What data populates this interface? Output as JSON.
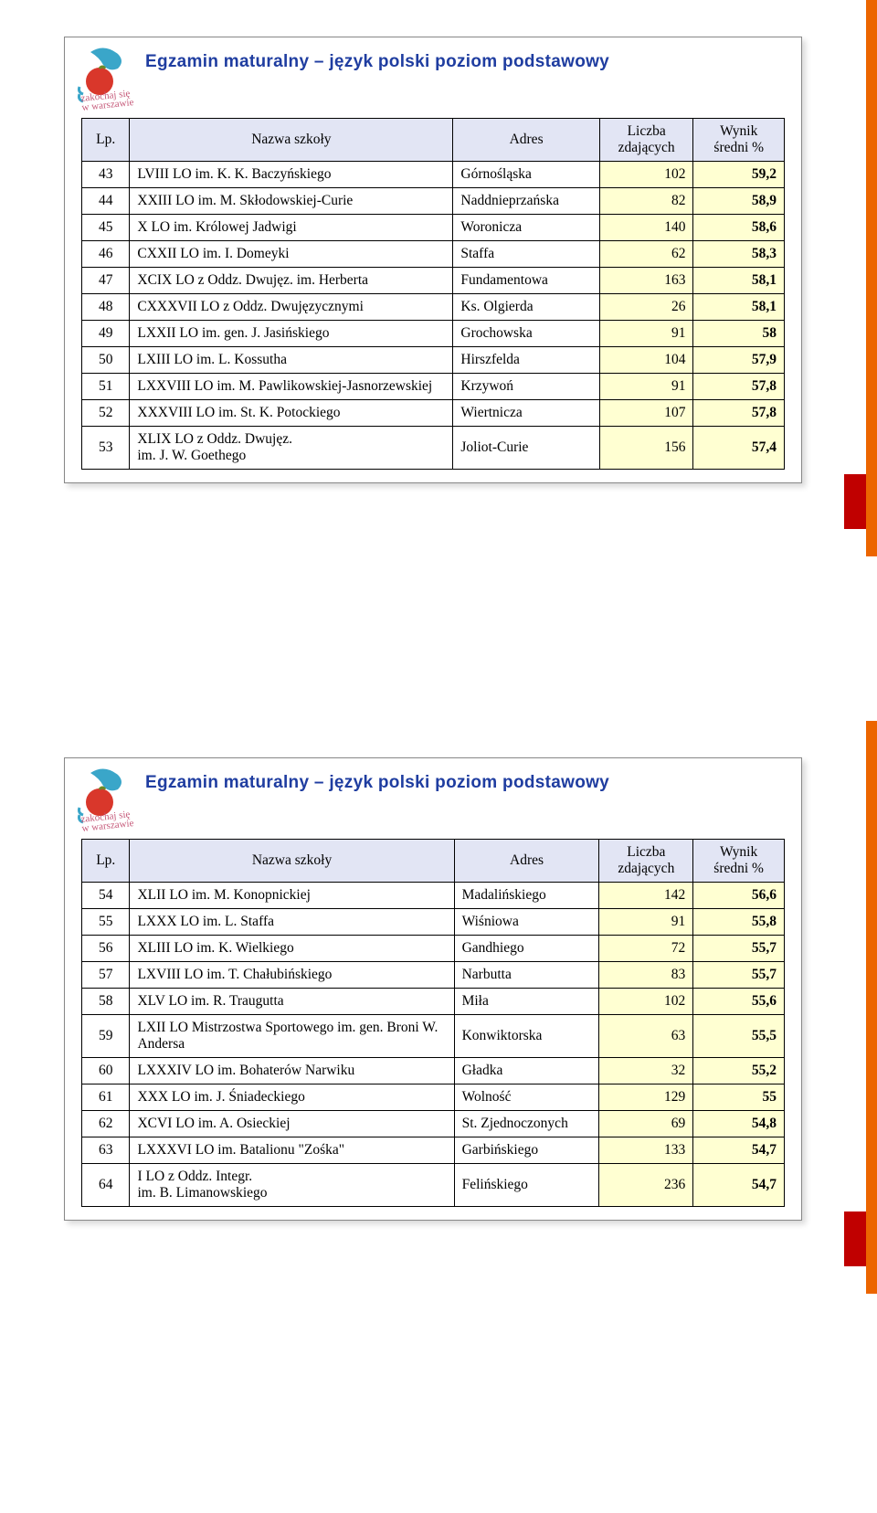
{
  "title": "Egzamin maturalny – język polski poziom  podstawowy",
  "slogan_line1": "zakochaj się",
  "slogan_line2": "w warszawie",
  "headers": {
    "lp": "Lp.",
    "name": "Nazwa szkoły",
    "addr": "Adres",
    "cnt_l1": "Liczba",
    "cnt_l2": "zdających",
    "res_l1": "Wynik",
    "res_l2": "średni %"
  },
  "table1": [
    {
      "lp": "43",
      "name": "LVIII LO im. K. K. Baczyńskiego",
      "addr": "Górnośląska",
      "cnt": "102",
      "res": "59,2"
    },
    {
      "lp": "44",
      "name": "XXIII LO im. M. Skłodowskiej-Curie",
      "addr": "Naddnieprzańska",
      "cnt": "82",
      "res": "58,9"
    },
    {
      "lp": "45",
      "name": "X LO im. Królowej Jadwigi",
      "addr": "Woronicza",
      "cnt": "140",
      "res": "58,6"
    },
    {
      "lp": "46",
      "name": "CXXII LO im. I. Domeyki",
      "addr": "Staffa",
      "cnt": "62",
      "res": "58,3"
    },
    {
      "lp": "47",
      "name": "XCIX LO z Oddz. Dwujęz. im. Herberta",
      "addr": "Fundamentowa",
      "cnt": "163",
      "res": "58,1"
    },
    {
      "lp": "48",
      "name": "CXXXVII LO z Oddz. Dwujęzycznymi",
      "addr": "Ks. Olgierda",
      "cnt": "26",
      "res": "58,1"
    },
    {
      "lp": "49",
      "name": "LXXII LO im. gen. J. Jasińskiego",
      "addr": "Grochowska",
      "cnt": "91",
      "res": "58"
    },
    {
      "lp": "50",
      "name": "LXIII LO  im. L. Kossutha",
      "addr": "Hirszfelda",
      "cnt": "104",
      "res": "57,9"
    },
    {
      "lp": "51",
      "name": "LXXVIII LO im. M. Pawlikowskiej-Jasnorzewskiej",
      "addr": "Krzywoń",
      "cnt": "91",
      "res": "57,8"
    },
    {
      "lp": "52",
      "name": "XXXVIII LO im. St. K. Potockiego",
      "addr": "Wiertnicza",
      "cnt": "107",
      "res": "57,8"
    },
    {
      "lp": "53",
      "name": "XLIX LO z Oddz. Dwujęz.\nim. J. W. Goethego",
      "addr": "Joliot-Curie",
      "cnt": "156",
      "res": "57,4"
    }
  ],
  "table2": [
    {
      "lp": "54",
      "name": "XLII LO im. M. Konopnickiej",
      "addr": "Madalińskiego",
      "cnt": "142",
      "res": "56,6"
    },
    {
      "lp": "55",
      "name": "LXXX LO im. L. Staffa",
      "addr": "Wiśniowa",
      "cnt": "91",
      "res": "55,8"
    },
    {
      "lp": "56",
      "name": "XLIII LO im. K. Wielkiego",
      "addr": "Gandhiego",
      "cnt": "72",
      "res": "55,7"
    },
    {
      "lp": "57",
      "name": "LXVIII LO im. T. Chałubińskiego",
      "addr": "Narbutta",
      "cnt": "83",
      "res": "55,7"
    },
    {
      "lp": "58",
      "name": "XLV LO im. R. Traugutta",
      "addr": "Miła",
      "cnt": "102",
      "res": "55,6"
    },
    {
      "lp": "59",
      "name": "LXII LO Mistrzostwa Sportowego im. gen. Broni W. Andersa",
      "addr": "Konwiktorska",
      "cnt": "63",
      "res": "55,5"
    },
    {
      "lp": "60",
      "name": "LXXXIV LO im. Bohaterów Narwiku",
      "addr": "Gładka",
      "cnt": "32",
      "res": "55,2"
    },
    {
      "lp": "61",
      "name": "XXX LO im. J. Śniadeckiego",
      "addr": "Wolność",
      "cnt": "129",
      "res": "55"
    },
    {
      "lp": "62",
      "name": "XCVI LO im. A. Osieckiej",
      "addr": "St. Zjednoczonych",
      "cnt": "69",
      "res": "54,8"
    },
    {
      "lp": "63",
      "name": "LXXXVI LO im. Batalionu \"Zośka\"",
      "addr": "Garbińskiego",
      "cnt": "133",
      "res": "54,7"
    },
    {
      "lp": "64",
      "name": "I LO z Oddz.  Integr.\nim. B. Limanowskiego",
      "addr": "Felińskiego",
      "cnt": "236",
      "res": "54,7"
    }
  ]
}
